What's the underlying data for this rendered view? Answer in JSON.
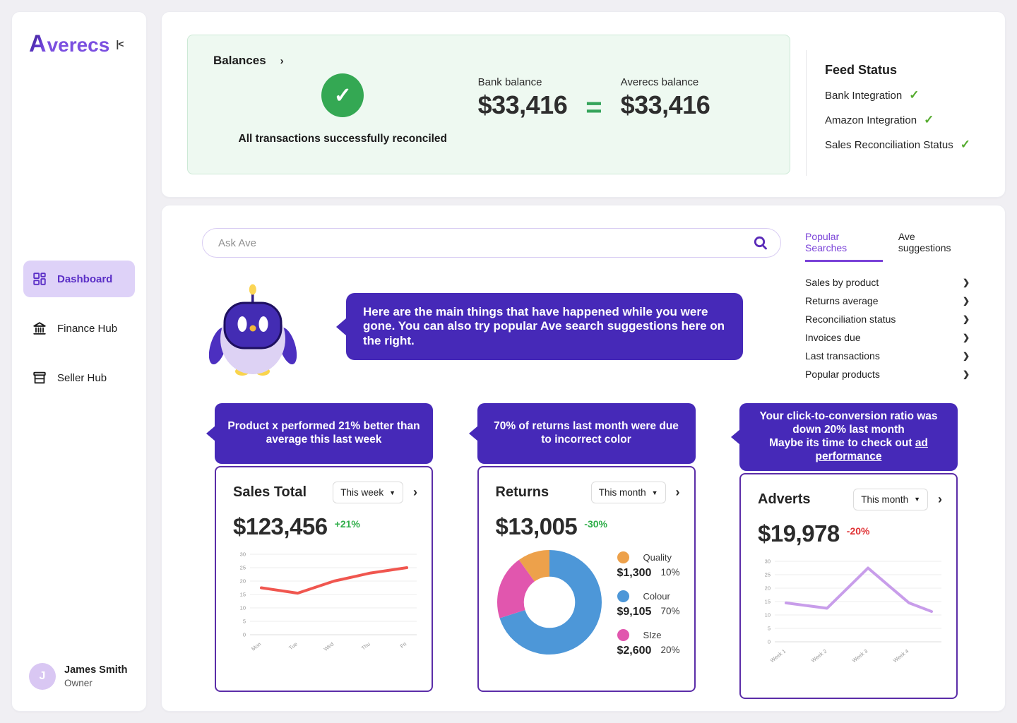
{
  "sidebar": {
    "logo_first": "A",
    "logo_rest": "verecs",
    "collapse_icon": "|<",
    "items": [
      {
        "label": "Dashboard",
        "active": true
      },
      {
        "label": "Finance Hub",
        "active": false
      },
      {
        "label": "Seller Hub",
        "active": false
      }
    ],
    "user": {
      "initial": "J",
      "name": "James Smith",
      "role": "Owner"
    }
  },
  "balances": {
    "title": "Balances",
    "status_text": "All transactions successfully reconciled",
    "bank_label": "Bank balance",
    "bank_value": "$33,416",
    "averecs_label": "Averecs balance",
    "averecs_value": "$33,416"
  },
  "feed_status": {
    "title": "Feed Status",
    "items": [
      "Bank Integration",
      "Amazon Integration",
      "Sales Reconciliation Status"
    ]
  },
  "search": {
    "placeholder": "Ask Ave"
  },
  "tabs": {
    "active": "Popular Searches",
    "inactive": "Ave suggestions"
  },
  "popular_searches": [
    "Sales by product",
    "Returns average",
    "Reconciliation status",
    "Invoices due",
    "Last transactions",
    "Popular products"
  ],
  "assistant_message": "Here are the main things that have happened while you were gone. You can also try popular Ave search suggestions here on the right.",
  "cards": [
    {
      "tooltip": "Product x performed 21% better than average this last week",
      "title": "Sales Total",
      "period": "This week",
      "value": "$123,456",
      "delta": "+21%",
      "delta_color": "green"
    },
    {
      "tooltip": "70% of returns last month were due to incorrect color",
      "title": "Returns",
      "period": "This month",
      "value": "$13,005",
      "delta": "-30%",
      "delta_color": "green"
    },
    {
      "tooltip_line1": "Your click-to-conversion ratio was down 20% last month",
      "tooltip_line2": "Maybe its time to check out",
      "tooltip_link": "ad performance",
      "title": "Adverts",
      "period": "This month",
      "value": "$19,978",
      "delta": "-20%",
      "delta_color": "red"
    }
  ],
  "chart_data": [
    {
      "type": "line",
      "card": "Sales Total",
      "x_labels": [
        "Mon",
        "Tue",
        "Wed",
        "Thu",
        "Fri"
      ],
      "x_pos": [
        0,
        1,
        2,
        3,
        4
      ],
      "x_max": 4,
      "values": [
        17.5,
        15.5,
        20,
        23,
        25
      ],
      "ylim": [
        0,
        30
      ],
      "y_step": 5,
      "grid": true,
      "color": "#f0564f"
    },
    {
      "type": "pie",
      "card": "Returns",
      "inner_radius_ratio": 0.49,
      "segments": [
        {
          "label": "Quality",
          "amount": "$1,300",
          "pct": "10%",
          "value": 1300,
          "fraction": 0.1,
          "color": "#eda14b"
        },
        {
          "label": "Colour",
          "amount": "$9,105",
          "pct": "70%",
          "value": 9105,
          "fraction": 0.7,
          "color": "#4d97d8"
        },
        {
          "label": "SIze",
          "amount": "$2,600",
          "pct": "20%",
          "value": 2600,
          "fraction": 0.2,
          "color": "#e156ae"
        }
      ],
      "draw_order": [
        1,
        2,
        0
      ],
      "start_angle_deg": 0,
      "direction": "clockwise",
      "legend_position": "right"
    },
    {
      "type": "line",
      "card": "Adverts",
      "x_labels": [
        "Week 1",
        "Week 2",
        "Week 3",
        "Week 4"
      ],
      "x_pos": [
        0,
        1,
        2,
        3,
        3.55
      ],
      "x_max": 3.55,
      "values": [
        14.5,
        12.5,
        27.5,
        14.5,
        11.3
      ],
      "ylim": [
        0,
        30
      ],
      "y_step": 5,
      "grid": true,
      "color": "#c89dea"
    }
  ]
}
